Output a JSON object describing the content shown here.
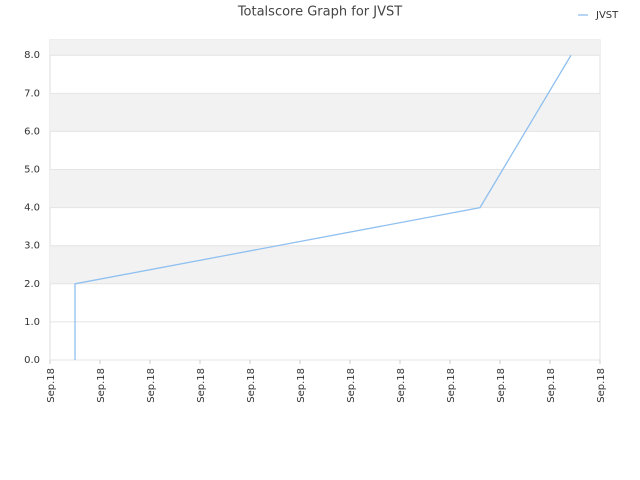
{
  "chart_data": {
    "type": "line",
    "title": "Totalscore Graph for JVST",
    "x": [
      0.5,
      0.5,
      8.6,
      10.42
    ],
    "series": [
      {
        "name": "JVST",
        "color": "#90c0f0",
        "values": [
          0,
          2,
          4,
          8
        ]
      }
    ],
    "xlim": [
      0,
      11
    ],
    "xticks": [
      {
        "value": 0,
        "label": "Sep.18"
      },
      {
        "value": 1,
        "label": "Sep.18"
      },
      {
        "value": 2,
        "label": "Sep.18"
      },
      {
        "value": 3,
        "label": "Sep.18"
      },
      {
        "value": 4,
        "label": "Sep.18"
      },
      {
        "value": 5,
        "label": "Sep.18"
      },
      {
        "value": 6,
        "label": "Sep.18"
      },
      {
        "value": 7,
        "label": "Sep.18"
      },
      {
        "value": 8,
        "label": "Sep.18"
      },
      {
        "value": 9,
        "label": "Sep.18"
      },
      {
        "value": 10,
        "label": "Sep.18"
      },
      {
        "value": 11,
        "label": "Sep.18"
      }
    ],
    "ylim": [
      0,
      8.4
    ],
    "yticks": [
      {
        "value": 0,
        "label": "0.0"
      },
      {
        "value": 1,
        "label": "1.0"
      },
      {
        "value": 2,
        "label": "2.0"
      },
      {
        "value": 3,
        "label": "3.0"
      },
      {
        "value": 4,
        "label": "4.0"
      },
      {
        "value": 5,
        "label": "5.0"
      },
      {
        "value": 6,
        "label": "6.0"
      },
      {
        "value": 7,
        "label": "7.0"
      },
      {
        "value": 8,
        "label": "8.0"
      }
    ],
    "grid": true,
    "legend": "top-right"
  }
}
